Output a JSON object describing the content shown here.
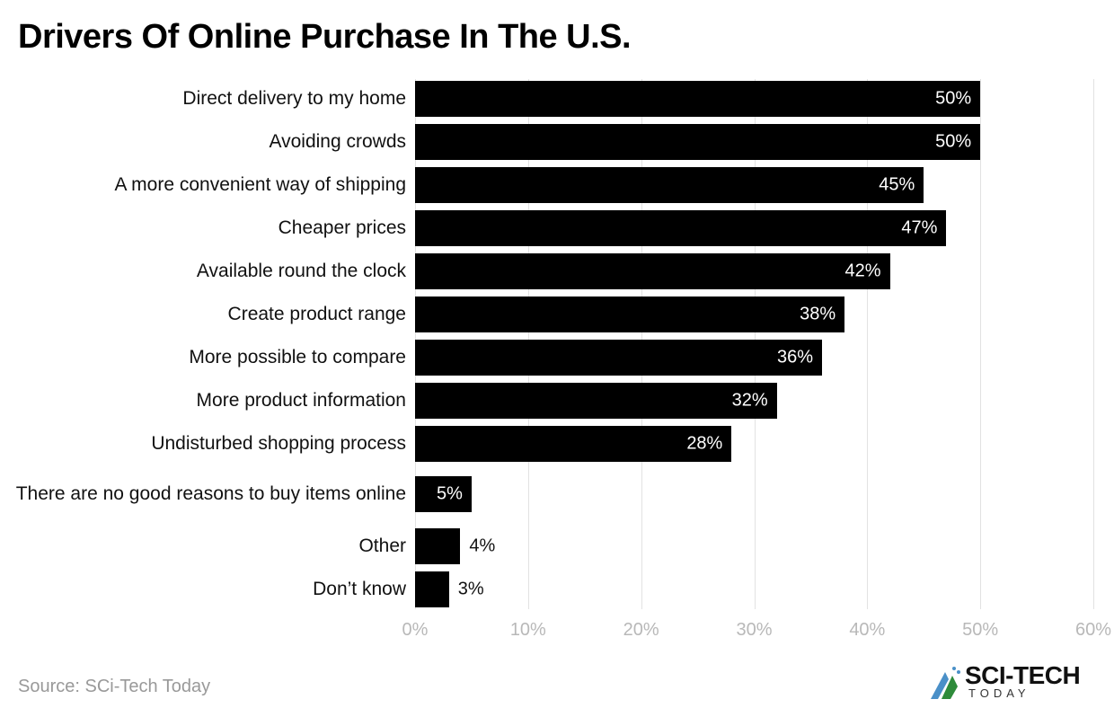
{
  "title": "Drivers Of Online Purchase In The U.S.",
  "source": "Source: SCi-Tech Today",
  "logo": {
    "text": "SCI-TECH",
    "subtext": "TODAY"
  },
  "chart_data": {
    "type": "bar",
    "orientation": "horizontal",
    "title": "Drivers Of Online Purchase In The U.S.",
    "categories": [
      "Direct delivery to my home",
      "Avoiding crowds",
      "A more convenient way of shipping",
      "Cheaper prices",
      "Available round the clock",
      "Create product range",
      "More possible to compare",
      "More product information",
      "Undisturbed shopping process",
      "There are no good reasons to buy items online",
      "Other",
      "Don’t know"
    ],
    "values": [
      50,
      50,
      45,
      47,
      42,
      38,
      36,
      32,
      28,
      5,
      4,
      3
    ],
    "value_labels": [
      "50%",
      "50%",
      "45%",
      "47%",
      "42%",
      "38%",
      "36%",
      "32%",
      "28%",
      "5%",
      "4%",
      "3%"
    ],
    "xlim": [
      0,
      60
    ],
    "xticks": [
      "0%",
      "10%",
      "20%",
      "30%",
      "40%",
      "50%",
      "60%"
    ],
    "grid": true,
    "bar_color": "#000000"
  }
}
